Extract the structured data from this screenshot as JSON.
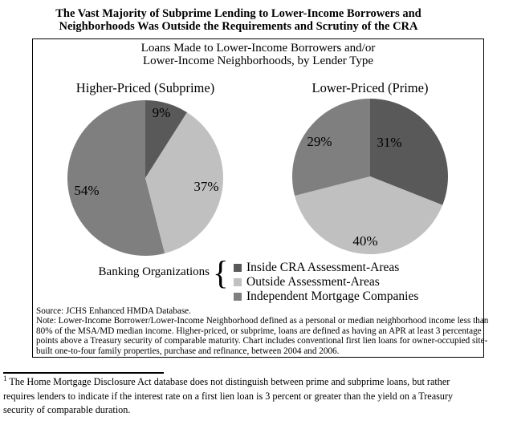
{
  "page_title": {
    "line1": "The Vast Majority of Subprime Lending to Lower-Income Borrowers and",
    "line2": "Neighborhoods Was Outside the Requirements and Scrutiny of the CRA"
  },
  "figure": {
    "title_line1": "Loans Made to Lower-Income Borrowers and/or",
    "title_line2": "Lower-Income Neighborhoods, by Lender Type",
    "source": "Source: JCHS Enhanced HMDA Database.",
    "note_lines": [
      "Note: Lower-Income Borrower/Lower-Income Neighborhood defined as a personal or median neighborhood income less than",
      "80% of the MSA/MD median income.  Higher-priced, or subprime, loans are defined as having an APR at least 3 percentage",
      "points above a Treasury security of comparable maturity.  Chart includes conventional first lien loans for owner-occupied site-",
      "built one-to-four family properties, purchase and refinance, between 2004 and 2006."
    ]
  },
  "chart_data": [
    {
      "type": "pie",
      "title": "Higher-Priced (Subprime)",
      "categories": [
        "Inside CRA Assessment-Areas",
        "Outside Assessment-Areas",
        "Independent Mortgage Companies"
      ],
      "values": [
        9,
        37,
        54
      ],
      "value_labels": [
        "9%",
        "37%",
        "54%"
      ],
      "colors": [
        "#595959",
        "#c0c0c0",
        "#7f7f7f"
      ],
      "start_angle": "12 o'clock",
      "direction": "clockwise"
    },
    {
      "type": "pie",
      "title": "Lower-Priced (Prime)",
      "categories": [
        "Inside CRA Assessment-Areas",
        "Outside Assessment-Areas",
        "Independent Mortgage Companies"
      ],
      "values": [
        31,
        40,
        29
      ],
      "value_labels": [
        "31%",
        "40%",
        "29%"
      ],
      "colors": [
        "#595959",
        "#c0c0c0",
        "#7f7f7f"
      ],
      "start_angle": "12 o'clock",
      "direction": "clockwise"
    }
  ],
  "legend": {
    "group_label": "Banking Organizations",
    "brace_glyph": "{",
    "items": [
      {
        "label": "Inside CRA Assessment-Areas",
        "color": "#595959"
      },
      {
        "label": "Outside Assessment-Areas",
        "color": "#c0c0c0"
      },
      {
        "label": "Independent Mortgage Companies",
        "color": "#7f7f7f"
      }
    ]
  },
  "footnote": {
    "marker": "1",
    "lines": [
      "The Home Mortgage Disclosure Act database does not distinguish between prime and subprime loans, but rather",
      "requires lenders to indicate if the interest rate on a first lien loan is 3 percent or greater than the yield on a Treasury",
      "security of comparable duration."
    ]
  }
}
